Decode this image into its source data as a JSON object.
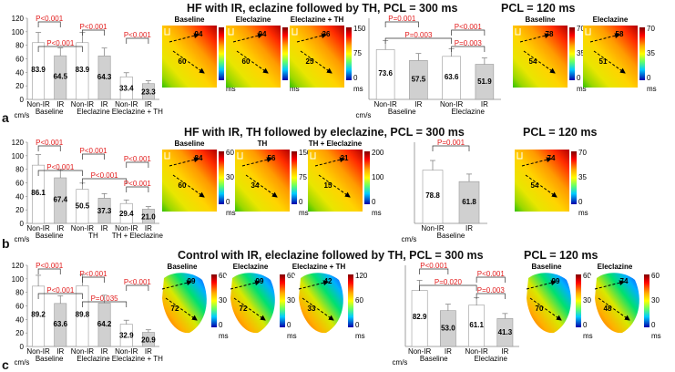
{
  "panels": [
    {
      "letter": "a",
      "title_left": "HF with IR, eclazine followed by TH, PCL = 300 ms",
      "title_right": "PCL = 120 ms",
      "left_chart": {
        "type": "bar",
        "ylabel": "cm/s",
        "ymax": 120,
        "yticks": [
          "0",
          "20",
          "40",
          "60",
          "80",
          "100",
          "120"
        ],
        "bars": [
          {
            "label": "Non-IR",
            "value": 83.9,
            "color": "#ffffff"
          },
          {
            "label": "IR",
            "value": 64.5,
            "color": "#d0d0d0"
          },
          {
            "label": "Non-IR",
            "value": 83.9,
            "color": "#ffffff"
          },
          {
            "label": "IR",
            "value": 64.3,
            "color": "#d0d0d0"
          },
          {
            "label": "Non-IR",
            "value": 33.4,
            "color": "#ffffff"
          },
          {
            "label": "IR",
            "value": 23.3,
            "color": "#d0d0d0"
          }
        ],
        "groups": [
          "Baseline",
          "Eleclazine",
          "Eleclazine + TH"
        ],
        "pvalues": [
          "P<0.001",
          "P<0.001",
          "P<0.001",
          "P<0.001"
        ]
      },
      "maps_left": [
        {
          "title": "Baseline",
          "v1": "94",
          "v2": "60",
          "scale": [
            "60",
            "30",
            "0"
          ],
          "unit": "ms"
        },
        {
          "title": "Eleclazine",
          "v1": "94",
          "v2": "60",
          "scale": [
            "60",
            "30",
            "0"
          ],
          "unit": "ms"
        },
        {
          "title": "Eleclazine + TH",
          "v1": "36",
          "v2": "25",
          "scale": [
            "150",
            "75",
            "0"
          ],
          "unit": "ms"
        }
      ],
      "right_chart": {
        "type": "bar",
        "ylabel": "cm/s",
        "bars": [
          {
            "label": "Non-IR",
            "value": 73.6,
            "color": "#ffffff"
          },
          {
            "label": "IR",
            "value": 57.5,
            "color": "#d0d0d0"
          },
          {
            "label": "Non-IR",
            "value": 63.6,
            "color": "#ffffff"
          },
          {
            "label": "IR",
            "value": 51.9,
            "color": "#d0d0d0"
          }
        ],
        "groups": [
          "Baseline",
          "Eleclazine"
        ],
        "pvalues": [
          "P=0.001",
          "P<0.001",
          "P=0.003",
          "P=0.003"
        ]
      },
      "maps_right": [
        {
          "title": "Baseline",
          "v1": "78",
          "v2": "54",
          "scale": [
            "70",
            "35",
            "0"
          ],
          "unit": "ms"
        },
        {
          "title": "Eleclazine",
          "v1": "58",
          "v2": "51",
          "scale": [
            "70",
            "35",
            "0"
          ],
          "unit": "ms"
        }
      ]
    },
    {
      "letter": "b",
      "title_left": "HF with IR, TH followed by eleclazine, PCL = 300 ms",
      "title_right": "PCL = 120 ms",
      "left_chart": {
        "type": "bar",
        "ylabel": "cm/s",
        "ymax": 120,
        "yticks": [
          "0",
          "20",
          "40",
          "60",
          "80",
          "100",
          "120"
        ],
        "bars": [
          {
            "label": "Non-IR",
            "value": 86.1,
            "color": "#ffffff"
          },
          {
            "label": "IR",
            "value": 67.4,
            "color": "#d0d0d0"
          },
          {
            "label": "Non-IR",
            "value": 50.5,
            "color": "#ffffff"
          },
          {
            "label": "IR",
            "value": 37.3,
            "color": "#d0d0d0"
          },
          {
            "label": "Non-IR",
            "value": 29.4,
            "color": "#ffffff"
          },
          {
            "label": "IR",
            "value": 21.0,
            "color": "#d0d0d0"
          }
        ],
        "groups": [
          "Baseline",
          "TH",
          "TH + Eleclazine"
        ],
        "pvalues": [
          "P<0.001",
          "P<0.001",
          "P<0.001",
          "P<0.001",
          "P<0.001",
          "P<0.001"
        ]
      },
      "maps_left": [
        {
          "title": "Baseline",
          "v1": "84",
          "v2": "60",
          "scale": [
            "60",
            "30",
            "0"
          ],
          "unit": "ms"
        },
        {
          "title": "TH",
          "v1": "56",
          "v2": "34",
          "scale": [
            "150",
            "75",
            "0"
          ],
          "unit": "ms"
        },
        {
          "title": "TH + Eleclazine",
          "v1": "21",
          "v2": "15",
          "scale": [
            "200",
            "100",
            "0"
          ],
          "unit": "ms"
        }
      ],
      "right_chart": {
        "type": "bar",
        "ylabel": "cm/s",
        "bars": [
          {
            "label": "Non-IR",
            "value": 78.8,
            "color": "#ffffff"
          },
          {
            "label": "IR",
            "value": 61.8,
            "color": "#d0d0d0"
          }
        ],
        "groups": [
          "Baseline"
        ],
        "pvalues": [
          "P=0.001"
        ]
      },
      "maps_right": [
        {
          "title": "",
          "v1": "74",
          "v2": "54",
          "scale": [
            "70",
            "35",
            "0"
          ],
          "unit": "ms"
        }
      ]
    },
    {
      "letter": "c",
      "title_left": "Control with IR, eleclazine followed by TH, PCL = 300 ms",
      "title_right": "PCL = 120 ms",
      "left_chart": {
        "type": "bar",
        "ylabel": "cm/s",
        "ymax": 120,
        "yticks": [
          "0",
          "20",
          "40",
          "60",
          "80",
          "100",
          "120"
        ],
        "bars": [
          {
            "label": "Non-IR",
            "value": 89.2,
            "color": "#ffffff"
          },
          {
            "label": "IR",
            "value": 63.6,
            "color": "#d0d0d0"
          },
          {
            "label": "Non-IR",
            "value": 89.8,
            "color": "#ffffff"
          },
          {
            "label": "IR",
            "value": 64.2,
            "color": "#d0d0d0"
          },
          {
            "label": "Non-IR",
            "value": 32.9,
            "color": "#ffffff"
          },
          {
            "label": "IR",
            "value": 20.9,
            "color": "#d0d0d0"
          }
        ],
        "groups": [
          "Baseline",
          "Eleclazine",
          "Eleclazine + TH"
        ],
        "pvalues": [
          "P<0.001",
          "P<0.001",
          "P<0.001",
          "P<0.001",
          "P=0.035"
        ]
      },
      "maps_left": [
        {
          "title": "Baseline",
          "v1": "99",
          "v2": "72",
          "scale": [
            "60",
            "30",
            "0"
          ],
          "unit": "ms"
        },
        {
          "title": "Eleclazine",
          "v1": "99",
          "v2": "72",
          "scale": [
            "60",
            "30",
            "0"
          ],
          "unit": "ms"
        },
        {
          "title": "Eleclazine + TH",
          "v1": "42",
          "v2": "33",
          "scale": [
            "120",
            "60",
            "0"
          ],
          "unit": "ms"
        }
      ],
      "right_chart": {
        "type": "bar",
        "ylabel": "cm/s",
        "bars": [
          {
            "label": "Non-IR",
            "value": 82.9,
            "color": "#ffffff"
          },
          {
            "label": "IR",
            "value": 53.0,
            "color": "#d0d0d0"
          },
          {
            "label": "Non-IR",
            "value": 61.1,
            "color": "#ffffff"
          },
          {
            "label": "IR",
            "value": 41.3,
            "color": "#d0d0d0"
          }
        ],
        "groups": [
          "Baseline",
          "Eleclazine"
        ],
        "pvalues": [
          "P<0.001",
          "P<0.001",
          "P=0.020",
          "P=0.003"
        ]
      },
      "maps_right": [
        {
          "title": "Baseline",
          "v1": "99",
          "v2": "70",
          "scale": [
            "60",
            "30",
            "0"
          ],
          "unit": "ms"
        },
        {
          "title": "Eleclazine",
          "v1": "74",
          "v2": "48",
          "scale": [
            "60",
            "30",
            "0"
          ],
          "unit": "ms"
        }
      ]
    }
  ]
}
